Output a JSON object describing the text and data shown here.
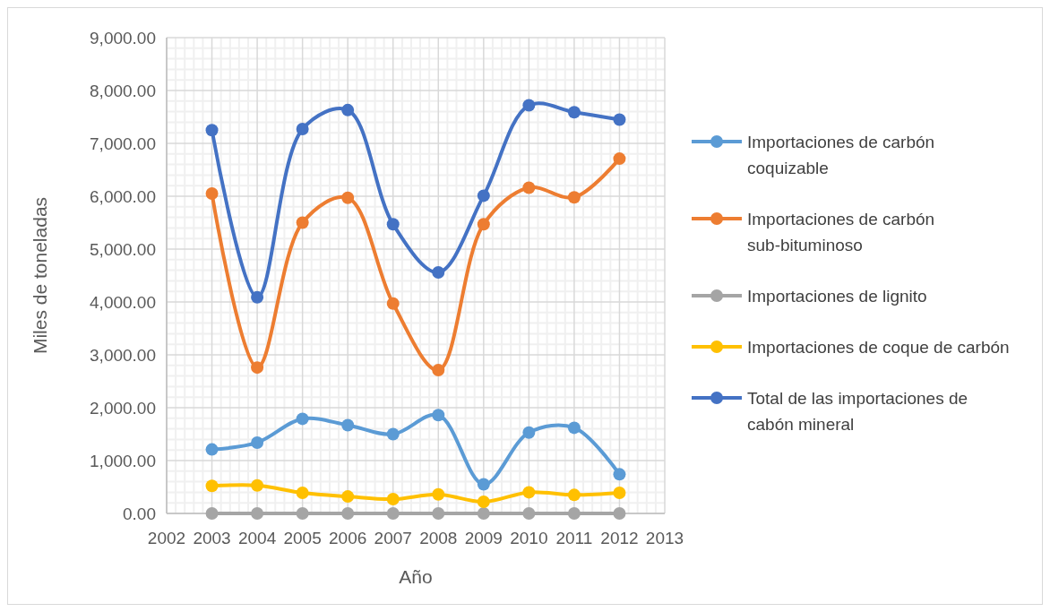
{
  "chart_data": {
    "type": "line",
    "xlabel": "Año",
    "ylabel": "Miles de toneladas",
    "x": [
      2003,
      2004,
      2005,
      2006,
      2007,
      2008,
      2009,
      2010,
      2011,
      2012
    ],
    "series": [
      {
        "name": "Importaciones de carbón coquizable",
        "color": "#5b9bd5",
        "values": [
          1210,
          1340,
          1790,
          1670,
          1500,
          1860,
          550,
          1530,
          1620,
          740
        ]
      },
      {
        "name": "Importaciones de carbón sub-bituminoso",
        "color": "#ed7d31",
        "values": [
          6050,
          2760,
          5500,
          5970,
          3970,
          2710,
          5470,
          6160,
          5980,
          6710
        ]
      },
      {
        "name": "Importaciones de lignito",
        "color": "#a5a5a5",
        "values": [
          0,
          0,
          0,
          0,
          0,
          0,
          0,
          0,
          0,
          0
        ]
      },
      {
        "name": "Importaciones de coque de carbón",
        "color": "#ffc000",
        "values": [
          520,
          530,
          390,
          320,
          270,
          360,
          220,
          400,
          350,
          390
        ]
      },
      {
        "name": "Total de las importaciones de cabón mineral",
        "color": "#4472c4",
        "values": [
          7250,
          4090,
          7270,
          7630,
          5470,
          4560,
          6010,
          7720,
          7590,
          7450
        ]
      }
    ],
    "xlim": [
      2002,
      2013
    ],
    "xticks": [
      2002,
      2003,
      2004,
      2005,
      2006,
      2007,
      2008,
      2009,
      2010,
      2011,
      2012,
      2013
    ],
    "ylim": [
      0,
      9000
    ],
    "yticks": [
      {
        "value": 0,
        "label": "0.00"
      },
      {
        "value": 1000,
        "label": "1,000.00"
      },
      {
        "value": 2000,
        "label": "2,000.00"
      },
      {
        "value": 3000,
        "label": "3,000.00"
      },
      {
        "value": 4000,
        "label": "4,000.00"
      },
      {
        "value": 5000,
        "label": "5,000.00"
      },
      {
        "value": 6000,
        "label": "6,000.00"
      },
      {
        "value": 7000,
        "label": "7,000.00"
      },
      {
        "value": 8000,
        "label": "8,000.00"
      },
      {
        "value": 9000,
        "label": "9,000.00"
      }
    ],
    "grid": true,
    "legend": "right",
    "marker": "circle",
    "line_style": "solid"
  }
}
